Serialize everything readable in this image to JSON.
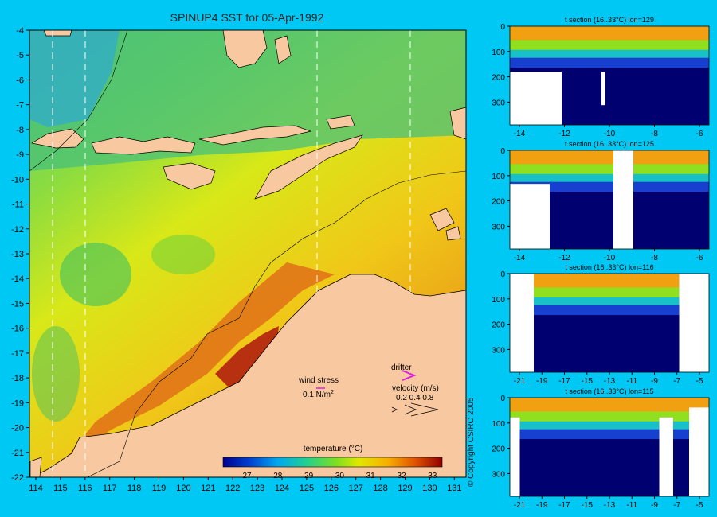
{
  "title": "SPINUP4 SST for 05-Apr-1992",
  "copyright": "© Copyright CSIRO 2005",
  "colors": {
    "background": "#00c8f5",
    "land": "#f8c8a0",
    "ocean_default": "#7ed84a"
  },
  "map": {
    "lat_ticks": [
      "-4",
      "-5",
      "-6",
      "-7",
      "-8",
      "-9",
      "-10",
      "-11",
      "-12",
      "-13",
      "-14",
      "-15",
      "-16",
      "-17",
      "-18",
      "-19",
      "-20",
      "-21",
      "-22"
    ],
    "lon_ticks": [
      "114",
      "115",
      "116",
      "117",
      "118",
      "119",
      "120",
      "121",
      "122",
      "123",
      "124",
      "125",
      "126",
      "127",
      "128",
      "129",
      "130",
      "131"
    ],
    "section_lines_lon": [
      114.5,
      115.8,
      125.4,
      129.2
    ]
  },
  "legend": {
    "wind_stress_label": "wind stress",
    "wind_stress_value": "0.1 N/m",
    "wind_stress_exp": "2",
    "drifter_label": "drifter",
    "velocity_label": "velocity (m/s)",
    "velocity_values": "0.2 0.4 0.8",
    "temperature_label": "temperature (°C)",
    "temperature_ticks": [
      "27",
      "28",
      "29",
      "30",
      "31",
      "32",
      "33"
    ]
  },
  "sections": [
    {
      "title": "t section (16..33°C) lon=129",
      "y_ticks": [
        "0",
        "100",
        "200",
        "300"
      ],
      "x_ticks": [
        "-14",
        "-12",
        "-10",
        "-8",
        "-6"
      ]
    },
    {
      "title": "t section (16..33°C) lon=125",
      "y_ticks": [
        "0",
        "100",
        "200",
        "300"
      ],
      "x_ticks": [
        "-14",
        "-12",
        "-10",
        "-8",
        "-6"
      ]
    },
    {
      "title": "t section (16..33°C) lon=116",
      "y_ticks": [
        "0",
        "100",
        "200",
        "300"
      ],
      "x_ticks": [
        "-21",
        "-19",
        "-17",
        "-15",
        "-13",
        "-11",
        "-9",
        "-7",
        "-5"
      ]
    },
    {
      "title": "t section (16..33°C) lon=115",
      "y_ticks": [
        "0",
        "100",
        "200",
        "300"
      ],
      "x_ticks": [
        "-21",
        "-19",
        "-17",
        "-15",
        "-13",
        "-11",
        "-9",
        "-7",
        "-5"
      ]
    }
  ]
}
